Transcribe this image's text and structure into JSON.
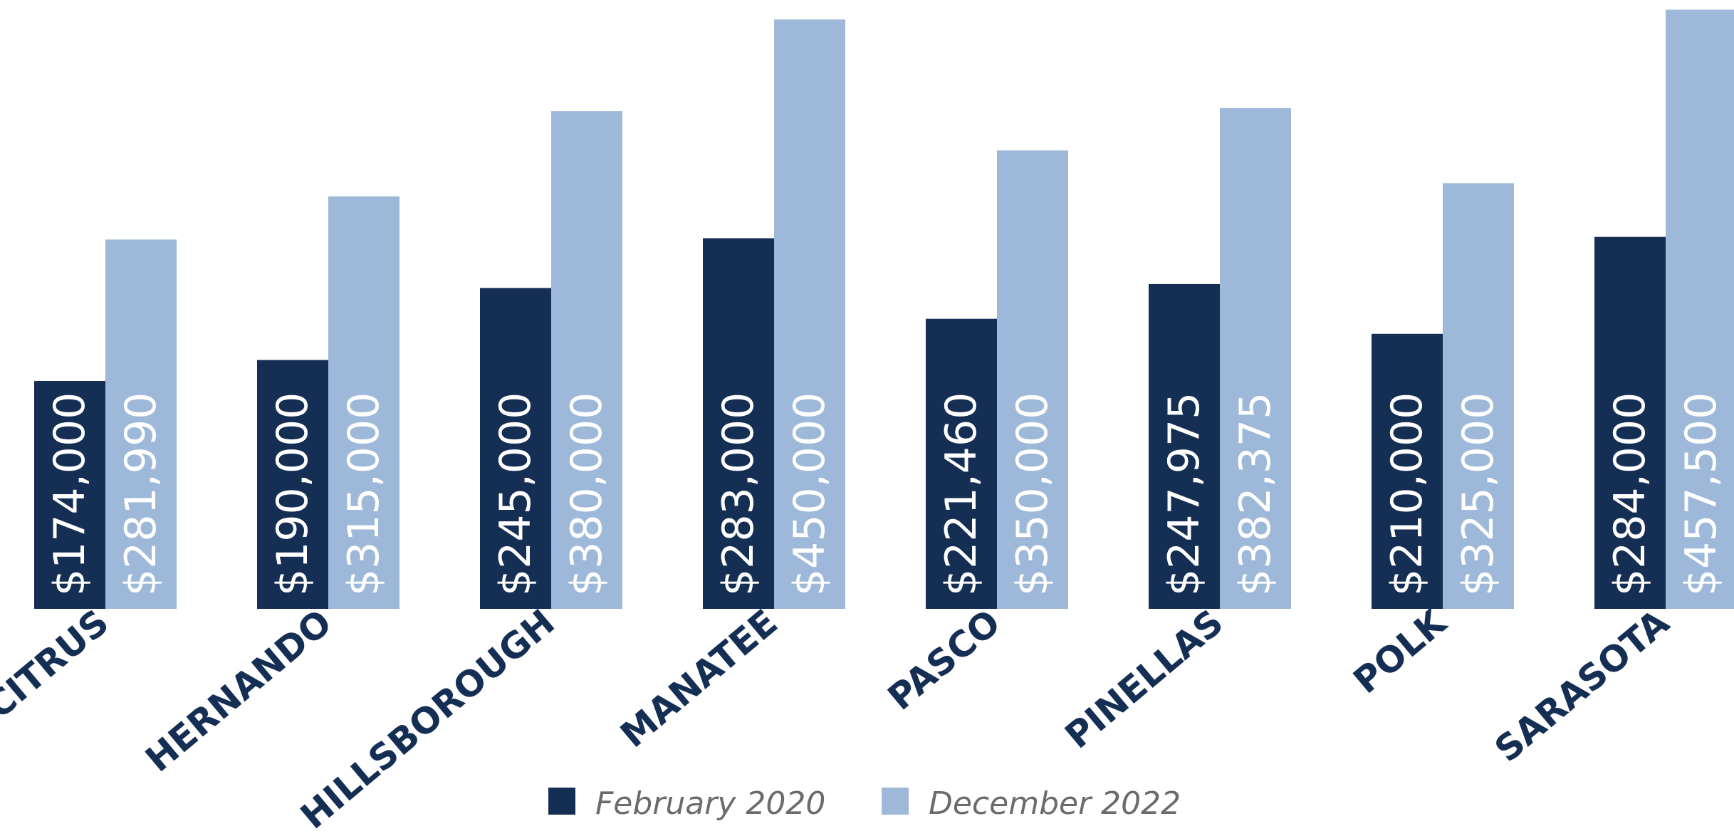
{
  "chart_data": {
    "type": "bar",
    "categories": [
      "CITRUS",
      "HERNANDO",
      "HILLSBOROUGH",
      "MANATEE",
      "PASCO",
      "PINELLAS",
      "POLK",
      "SARASOTA"
    ],
    "series": [
      {
        "name": "February 2020",
        "values": [
          174000,
          190000,
          245000,
          283000,
          221460,
          247975,
          210000,
          284000
        ],
        "labels": [
          "$174,000",
          "$190,000",
          "$245,000",
          "$283,000",
          "$221,460",
          "$247,975",
          "$210,000",
          "$284,000"
        ],
        "color": "#152e54",
        "label_color": "#ffffff"
      },
      {
        "name": "December 2022",
        "values": [
          281990,
          315000,
          380000,
          450000,
          350000,
          382375,
          325000,
          457500
        ],
        "labels": [
          "$281,990",
          "$315,000",
          "$380,000",
          "$450,000",
          "$350,000",
          "$382,375",
          "$325,000",
          "$457,500"
        ],
        "color": "#9db8d8",
        "label_color": "#ffffff"
      }
    ],
    "title": "",
    "xlabel": "",
    "ylabel": "",
    "ylim": [
      0,
      460000
    ],
    "grid": false,
    "legend_position": "bottom-center"
  }
}
